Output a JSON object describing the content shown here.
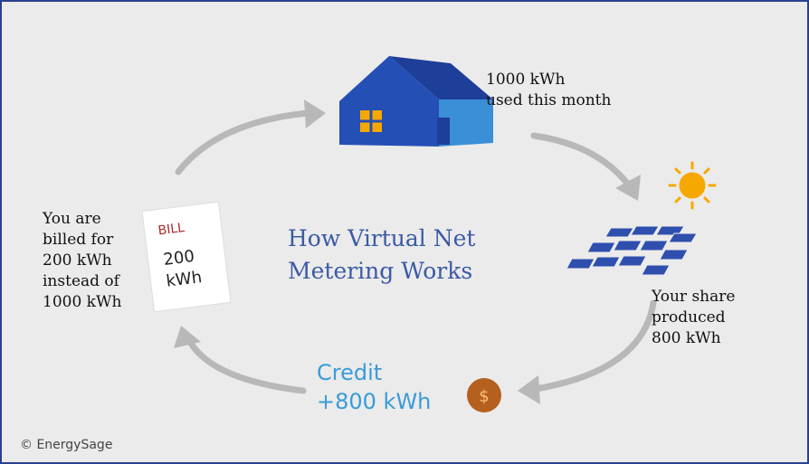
{
  "title": {
    "lines": [
      "How Virtual Net",
      "Metering Works"
    ]
  },
  "house": {
    "lines": [
      "1000 kWh",
      "used this month"
    ]
  },
  "solar": {
    "lines": [
      "Your share",
      "produced",
      "800 kWh"
    ]
  },
  "credit": {
    "lines": [
      "Credit",
      "+800 kWh"
    ],
    "coin": "$"
  },
  "bill": {
    "heading": "BILL",
    "lines": [
      "200",
      "kWh"
    ]
  },
  "billed": {
    "lines": [
      "You are",
      "billed for",
      "200 kWh",
      "instead of",
      "1000 kWh"
    ]
  },
  "footer": {
    "copyright": "© EnergySage"
  }
}
